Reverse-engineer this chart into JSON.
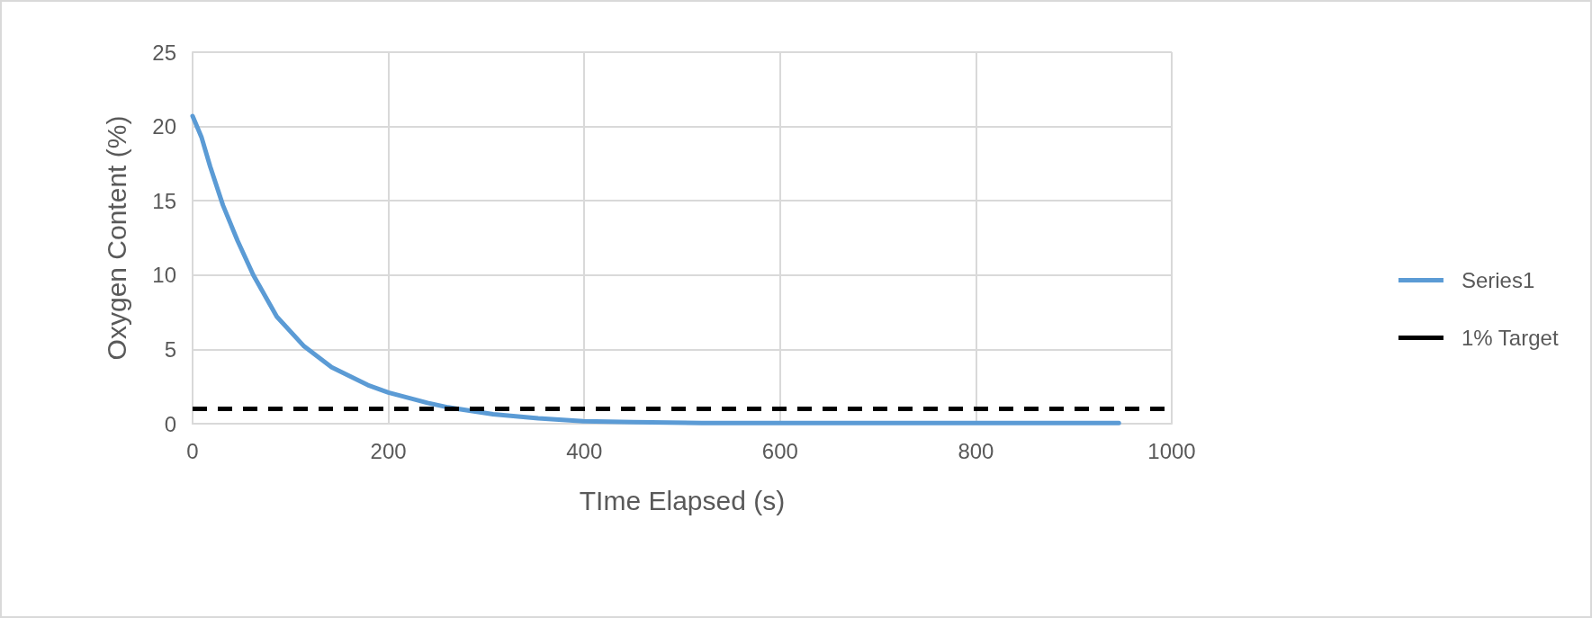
{
  "chart_data": {
    "type": "line",
    "xlabel": "TIme Elapsed (s)",
    "ylabel": "Oxygen Content (%)",
    "series": [
      {
        "name": "Series1",
        "color": "#5b9bd5",
        "x": [
          0,
          9,
          18,
          31,
          46,
          62,
          86,
          114,
          142,
          179,
          200,
          240,
          261,
          307,
          353,
          399,
          450,
          520,
          600,
          700,
          800,
          946
        ],
        "values": [
          20.7,
          19.3,
          17.3,
          14.7,
          12.3,
          10.0,
          7.2,
          5.2,
          3.8,
          2.6,
          2.1,
          1.4,
          1.1,
          0.64,
          0.36,
          0.16,
          0.1,
          0.05,
          0.05,
          0.05,
          0.05,
          0.05
        ]
      }
    ],
    "ref_lines": [
      {
        "axis": "y",
        "value": 1,
        "label": "1% Target",
        "color": "#000000",
        "line_style": "dashed"
      }
    ],
    "xlim": [
      0,
      1000
    ],
    "xticks": [
      0,
      200,
      400,
      600,
      800,
      1000
    ],
    "ylim": [
      0,
      25
    ],
    "yticks": [
      0,
      5,
      10,
      15,
      20,
      25
    ],
    "grid": true,
    "legend": "right",
    "marker": "none",
    "line_style": "solid"
  }
}
